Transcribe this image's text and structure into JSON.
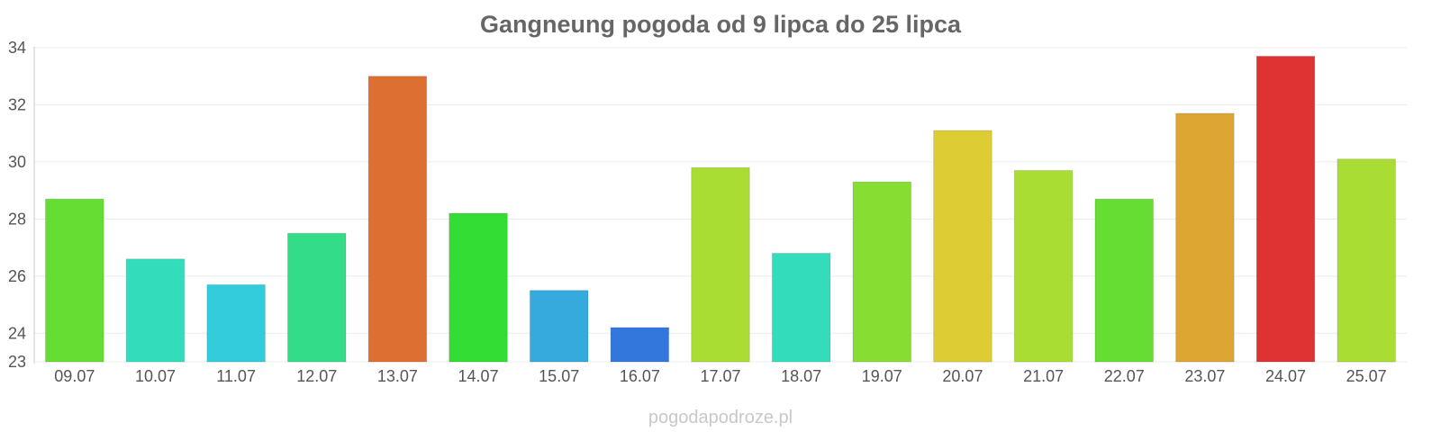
{
  "chart_data": {
    "type": "bar",
    "title": "Gangneung pogoda od 9 lipca do 25 lipca",
    "xlabel": "",
    "ylabel": "",
    "ylim": [
      23,
      34
    ],
    "yticks": [
      23,
      24,
      26,
      28,
      30,
      32,
      34
    ],
    "grid": true,
    "categories": [
      "09.07",
      "10.07",
      "11.07",
      "12.07",
      "13.07",
      "14.07",
      "15.07",
      "16.07",
      "17.07",
      "18.07",
      "19.07",
      "20.07",
      "21.07",
      "22.07",
      "23.07",
      "24.07",
      "25.07"
    ],
    "values": [
      28.7,
      26.6,
      25.7,
      27.5,
      33.0,
      28.2,
      25.5,
      24.2,
      29.8,
      26.8,
      29.3,
      31.1,
      29.7,
      28.7,
      31.7,
      33.7,
      30.1
    ],
    "colors": [
      "#66dd33",
      "#33ddbb",
      "#33ccdd",
      "#33dd88",
      "#dd6f33",
      "#33dd33",
      "#36a9dd",
      "#3377dd",
      "#aadd33",
      "#33ddbb",
      "#88dd33",
      "#ddcc33",
      "#aadd33",
      "#66dd33",
      "#dda633",
      "#dd3333",
      "#aadd33"
    ]
  },
  "watermark": "pogodapodroze.pl"
}
